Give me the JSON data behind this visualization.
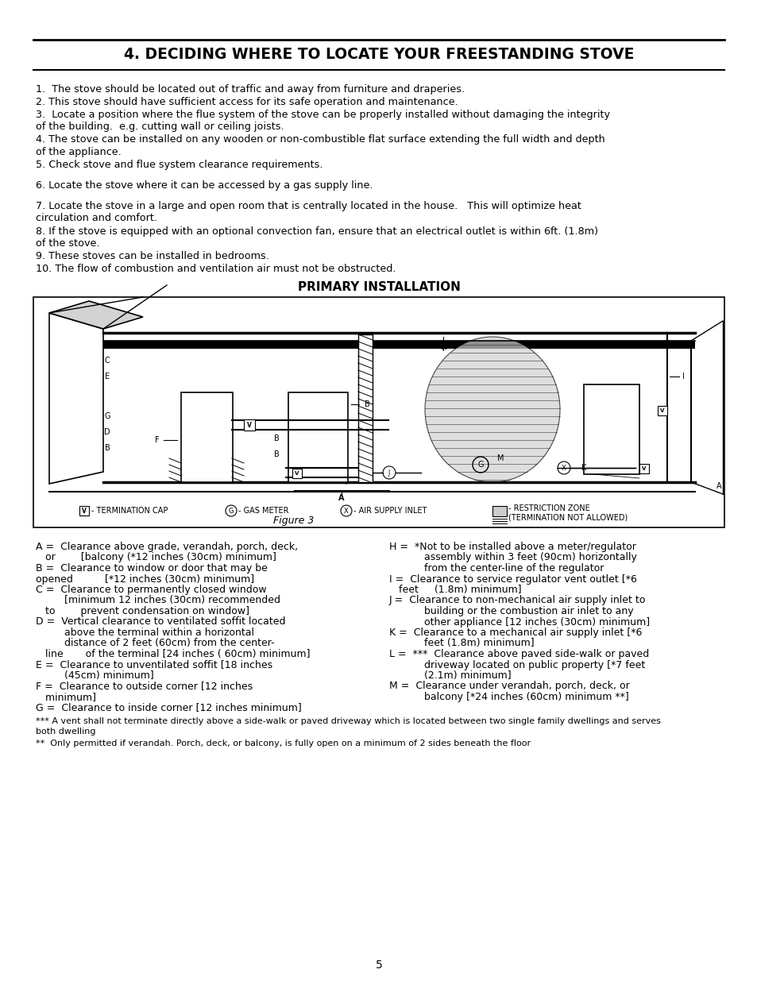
{
  "title": "4. DECIDING WHERE TO LOCATE YOUR FREESTANDING STOVE",
  "background_color": "#ffffff",
  "text_color": "#000000",
  "page_number": "5",
  "body_paragraphs": [
    "1.  The stove should be located out of traffic and away from furniture and draperies.",
    "2. This stove should have sufficient access for its safe operation and maintenance.",
    "3.  Locate a position where the flue system of the stove can be properly installed without damaging the integrity\nof the building.  e.g. cutting wall or ceiling joists.",
    "4. The stove can be installed on any wooden or non-combustible flat surface extending the full width and depth\nof the appliance.",
    "5. Check stove and flue system clearance requirements.",
    "",
    "6. Locate the stove where it can be accessed by a gas supply line.",
    "",
    "7. Locate the stove in a large and open room that is centrally located in the house.   This will optimize heat\ncirculation and comfort.",
    "8. If the stove is equipped with an optional convection fan, ensure that an electrical outlet is within 6ft. (1.8m)\nof the stove.",
    "9. These stoves can be installed in bedrooms.",
    "10. The flow of combustion and ventilation air must not be obstructed."
  ],
  "primary_installation_title": "PRIMARY INSTALLATION",
  "figure_caption": "Figure 3",
  "left_column_lines": [
    "A =  Clearance above grade, verandah, porch, deck,",
    "   or        [balcony (*12 inches (30cm) minimum]",
    "B =  Clearance to window or door that may be",
    "opened          [*12 inches (30cm) minimum]",
    "C =  Clearance to permanently closed window",
    "         [minimum 12 inches (30cm) recommended",
    "   to        prevent condensation on window]",
    "D =  Vertical clearance to ventilated soffit located",
    "         above the terminal within a horizontal",
    "         distance of 2 feet (60cm) from the center-",
    "   line       of the terminal [24 inches ( 60cm) minimum]",
    "E =  Clearance to unventilated soffit [18 inches",
    "         (45cm) minimum]",
    "F =  Clearance to outside corner [12 inches",
    "   minimum]",
    "G =  Clearance to inside corner [12 inches minimum]"
  ],
  "right_column_lines": [
    "H =  *Not to be installed above a meter/regulator",
    "           assembly within 3 feet (90cm) horizontally",
    "           from the center-line of the regulator",
    "I =  Clearance to service regulator vent outlet [*6",
    "   feet     (1.8m) minimum]",
    "J =  Clearance to non-mechanical air supply inlet to",
    "           building or the combustion air inlet to any",
    "           other appliance [12 inches (30cm) minimum]",
    "K =  Clearance to a mechanical air supply inlet [*6",
    "           feet (1.8m) minimum]",
    "L =  ***  Clearance above paved side-walk or paved",
    "           driveway located on public property [*7 feet",
    "           (2.1m) minimum]",
    "M =  Clearance under verandah, porch, deck, or",
    "           balcony [*24 inches (60cm) minimum **]"
  ],
  "footnote1": "*** A vent shall not terminate directly above a side-walk or paved driveway which is located between two single family dwellings and serves\nboth dwelling",
  "footnote2": "**  Only permitted if verandah. Porch, deck, or balcony, is fully open on a minimum of 2 sides beneath the floor"
}
